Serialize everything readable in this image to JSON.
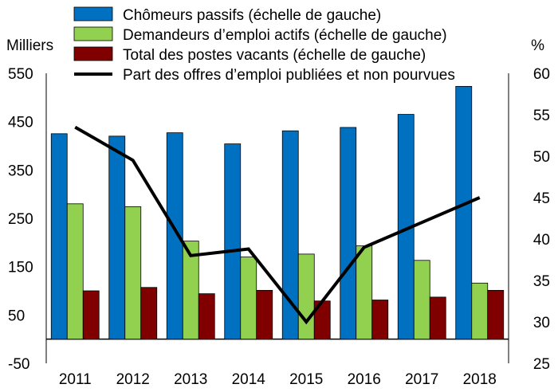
{
  "chart_data": {
    "type": "bar",
    "categories": [
      "2011",
      "2012",
      "2013",
      "2014",
      "2015",
      "2016",
      "2017",
      "2018"
    ],
    "series": [
      {
        "name": "Chômeurs passifs (échelle de gauche)",
        "kind": "bar",
        "axis": "left",
        "color": "#0070C0",
        "values": [
          425,
          420,
          427,
          404,
          431,
          438,
          465,
          523
        ]
      },
      {
        "name": "Demandeurs d’emploi actifs (échelle de gauche)",
        "kind": "bar",
        "axis": "left",
        "color": "#92D050",
        "values": [
          280,
          274,
          203,
          170,
          176,
          193,
          163,
          116
        ]
      },
      {
        "name": "Total des postes vacants (échelle de gauche)",
        "kind": "bar",
        "axis": "left",
        "color": "#800000",
        "values": [
          100,
          107,
          94,
          101,
          79,
          81,
          87,
          101
        ]
      },
      {
        "name": "Part des offres d’emploi publiées et non pourvues",
        "kind": "line",
        "axis": "right",
        "color": "#000000",
        "values": [
          53.5,
          49.5,
          38,
          38.8,
          30,
          39,
          42,
          45
        ]
      }
    ],
    "left_axis": {
      "label": "Milliers",
      "range": [
        -50,
        550
      ],
      "ticks": [
        -50,
        50,
        150,
        250,
        350,
        450,
        550
      ]
    },
    "right_axis": {
      "label": "%",
      "range": [
        25,
        60
      ],
      "ticks": [
        25,
        30,
        35,
        40,
        45,
        50,
        55,
        60
      ]
    },
    "grid": false,
    "legend_position": "top-left"
  }
}
